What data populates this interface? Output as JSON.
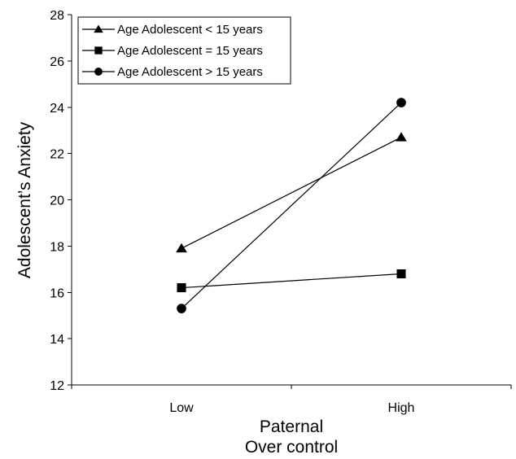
{
  "chart_data": {
    "type": "line",
    "categories": [
      "Low",
      "High"
    ],
    "xlabel": [
      "Paternal",
      "Over control"
    ],
    "ylabel": "Adolescent’s Anxiety",
    "ylim": [
      12,
      28
    ],
    "yticks": [
      12,
      14,
      16,
      18,
      20,
      22,
      24,
      26,
      28
    ],
    "grid": false,
    "legend_position": "top-left",
    "series": [
      {
        "name": "Age Adolescent < 15 years",
        "marker": "triangle",
        "values": [
          17.9,
          22.7
        ]
      },
      {
        "name": "Age Adolescent = 15 years",
        "marker": "square",
        "values": [
          16.2,
          16.8
        ]
      },
      {
        "name": "Age Adolescent > 15 years",
        "marker": "circle",
        "values": [
          15.3,
          24.2
        ]
      }
    ],
    "colors": {
      "line": "#000000",
      "marker": "#000000"
    }
  }
}
